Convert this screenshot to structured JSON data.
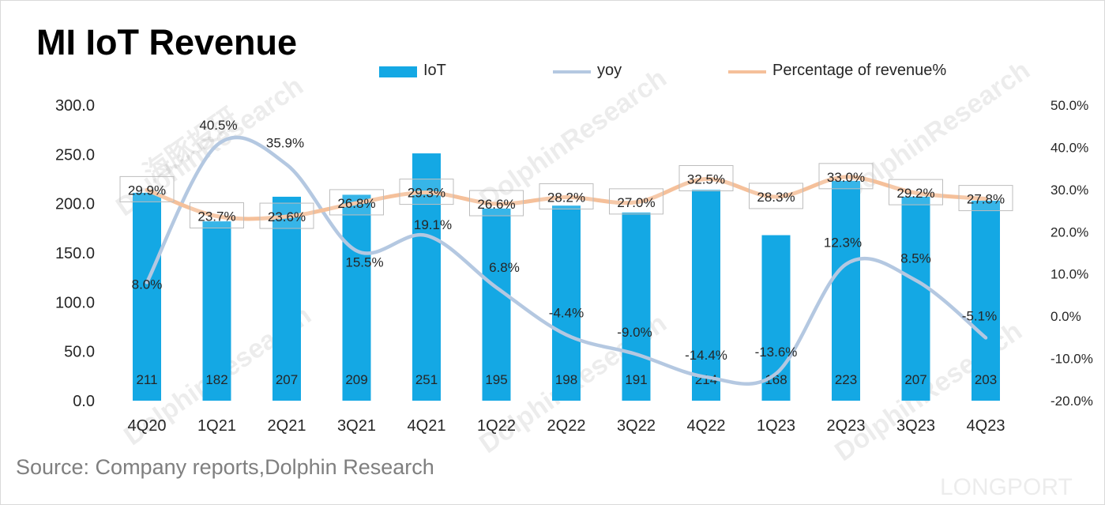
{
  "title": "MI IoT Revenue",
  "source": "Source: Company reports,Dolphin Research",
  "watermarks": [
    "海豚投研",
    "DolphinResearch",
    "LONGPORT"
  ],
  "colors": {
    "bar": "#14a8e4",
    "yoy_line": "#b4c8e1",
    "pct_line": "#f5c09a",
    "axis_text": "#262626",
    "label_box_border": "#bdbdbd"
  },
  "legend": [
    {
      "label": "IoT",
      "type": "bar"
    },
    {
      "label": "yoy",
      "type": "line"
    },
    {
      "label": "Percentage of revenue%",
      "type": "line"
    }
  ],
  "chart_data": {
    "type": "bar",
    "categories": [
      "4Q20",
      "1Q21",
      "2Q21",
      "3Q21",
      "4Q21",
      "1Q22",
      "2Q22",
      "3Q22",
      "4Q22",
      "1Q23",
      "2Q23",
      "3Q23",
      "4Q23"
    ],
    "series": [
      {
        "name": "IoT",
        "type": "bar",
        "axis": "left",
        "values": [
          211,
          182,
          207,
          209,
          251,
          195,
          198,
          191,
          214,
          168,
          223,
          207,
          203
        ],
        "labels": [
          "211",
          "182",
          "207",
          "209",
          "251",
          "195",
          "198",
          "191",
          "214",
          "168",
          "223",
          "207",
          "203"
        ]
      },
      {
        "name": "yoy",
        "type": "line",
        "axis": "right",
        "smooth": true,
        "values": [
          8.0,
          40.5,
          35.9,
          15.5,
          19.1,
          6.8,
          -4.4,
          -9.0,
          -14.4,
          -13.6,
          12.3,
          8.5,
          -5.1
        ],
        "labels": [
          "8.0%",
          "40.5%",
          "35.9%",
          "15.5%",
          "19.1%",
          "6.8%",
          "-4.4%",
          "-9.0%",
          "-14.4%",
          "-13.6%",
          "12.3%",
          "8.5%",
          "-5.1%"
        ]
      },
      {
        "name": "Percentage of revenue%",
        "type": "line",
        "axis": "right",
        "values": [
          29.9,
          23.7,
          23.6,
          26.8,
          29.3,
          26.6,
          28.2,
          27.0,
          32.5,
          28.3,
          33.0,
          29.2,
          27.8
        ],
        "labels": [
          "29.9%",
          "23.7%",
          "23.6%",
          "26.8%",
          "29.3%",
          "26.6%",
          "28.2%",
          "27.0%",
          "32.5%",
          "28.3%",
          "33.0%",
          "29.2%",
          "27.8%"
        ]
      }
    ],
    "y_left": {
      "min": 0,
      "max": 300,
      "ticks": [
        "0.0",
        "50.0",
        "100.0",
        "150.0",
        "200.0",
        "250.0",
        "300.0"
      ]
    },
    "y_right": {
      "min": -20,
      "max": 50,
      "ticks": [
        "-20.0%",
        "-10.0%",
        "0.0%",
        "10.0%",
        "20.0%",
        "30.0%",
        "40.0%",
        "50.0%"
      ]
    },
    "grid": false,
    "legend_position": "top"
  }
}
